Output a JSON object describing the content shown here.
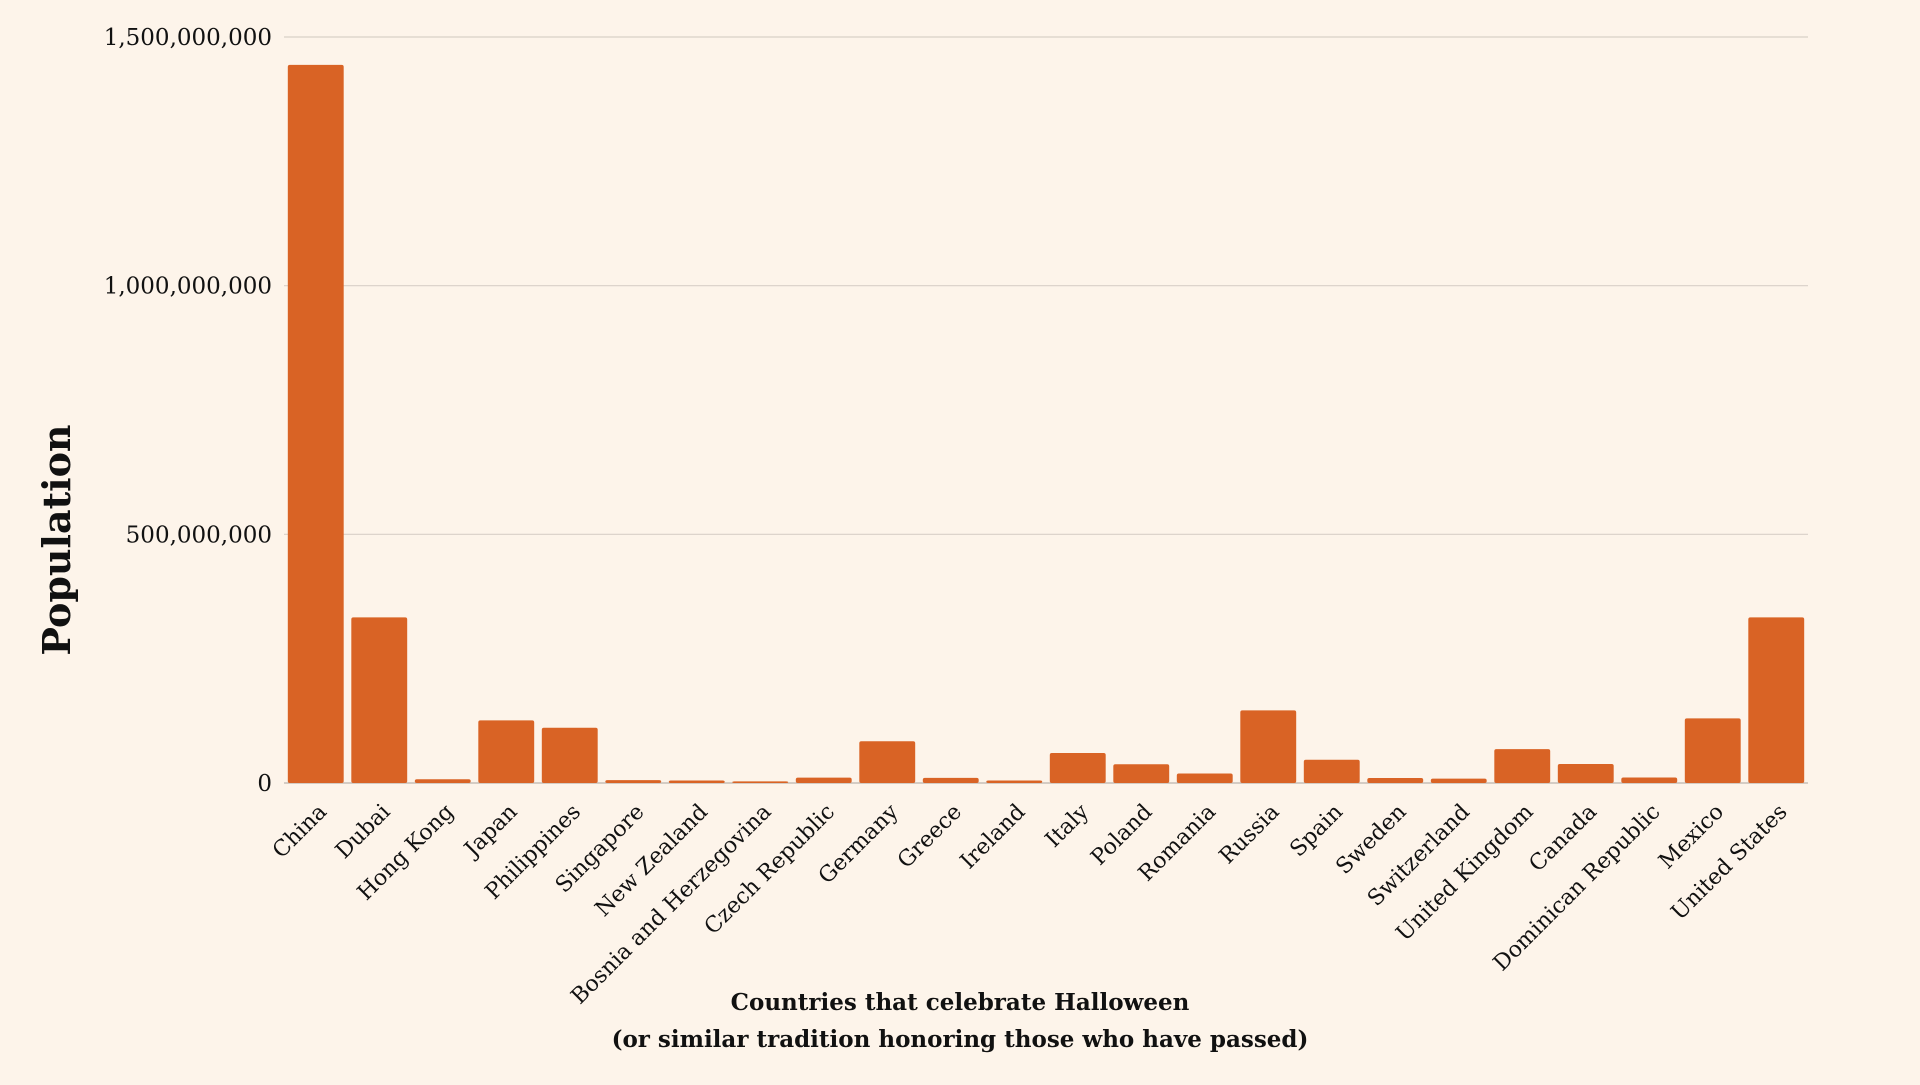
{
  "colors": {
    "background": "#fdf4ea",
    "bar": "#d96325",
    "gridline": "#d8d0c8",
    "text": "#111111"
  },
  "chart_data": {
    "type": "bar",
    "title": "",
    "xlabel_lines": [
      "Countries that celebrate Halloween",
      "(or similar tradition honoring those who have passed)"
    ],
    "ylabel": "Population",
    "ylim": [
      0,
      1500000000
    ],
    "yticks": [
      0,
      500000000,
      1000000000,
      1500000000
    ],
    "ytick_labels": [
      "0",
      "500,000,000",
      "1,000,000,000",
      "1,500,000,000"
    ],
    "grid": true,
    "legend": "none",
    "categories": [
      "China",
      "Dubai",
      "Hong Kong",
      "Japan",
      "Philippines",
      "Singapore",
      "New Zealand",
      "Bosnia and Herzegovina",
      "Czech Republic",
      "Germany",
      "Greece",
      "Ireland",
      "Italy",
      "Poland",
      "Romania",
      "Russia",
      "Spain",
      "Sweden",
      "Switzerland",
      "United Kingdom",
      "Canada",
      "Dominican Republic",
      "Mexico",
      "United States"
    ],
    "values": [
      1444000000,
      333000000,
      7500000,
      126000000,
      111000000,
      5900000,
      5100000,
      3300000,
      10700000,
      83900000,
      10400000,
      5000000,
      60400000,
      37800000,
      19100000,
      146000000,
      46700000,
      10100000,
      8700000,
      68200000,
      38100000,
      11000000,
      130000000,
      333000000
    ]
  }
}
